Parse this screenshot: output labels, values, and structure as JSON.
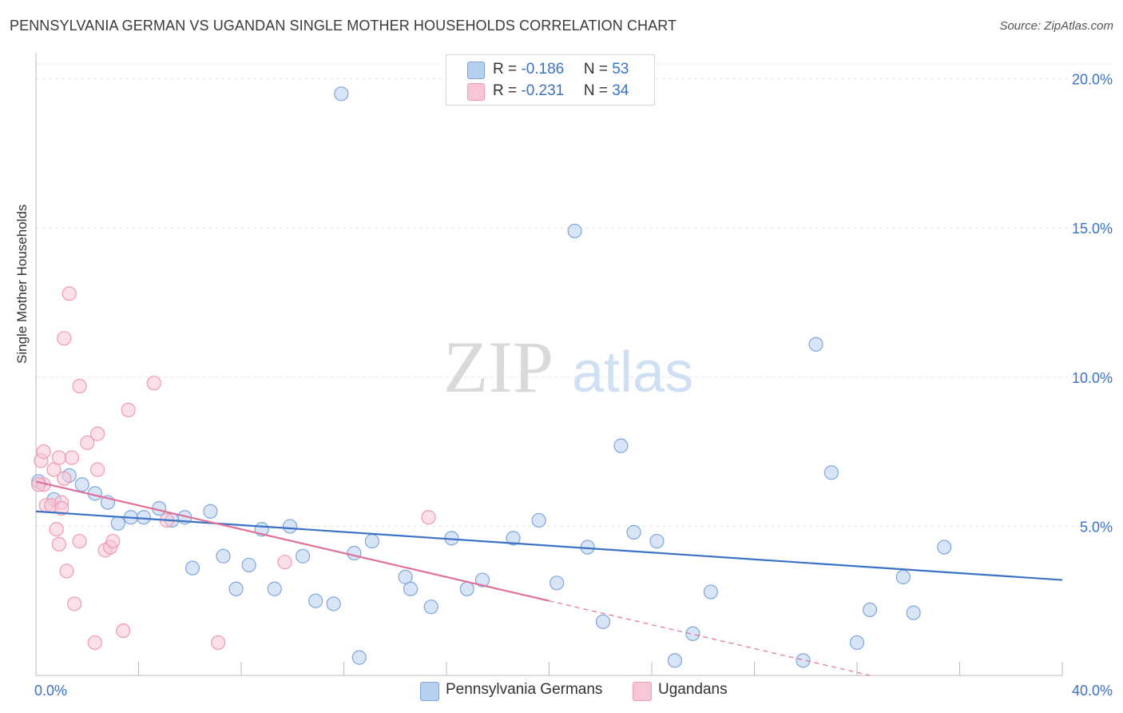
{
  "title": "PENNSYLVANIA GERMAN VS UGANDAN SINGLE MOTHER HOUSEHOLDS CORRELATION CHART",
  "source": "Source: ZipAtlas.com",
  "watermark": {
    "zip": "ZIP",
    "atlas": "atlas"
  },
  "colors": {
    "blue_fill": "#b8d0f0",
    "blue_stroke": "#7fa6dc",
    "blue_line": "#3a72c4",
    "pink_fill": "#f8c6d6",
    "pink_stroke": "#ee9ab4",
    "pink_line": "#e0709a",
    "axis_label": "#3a72c4",
    "grid": "#e3e3e3"
  },
  "legend": {
    "rows": [
      {
        "r_label": "R = ",
        "r_value": "-0.186",
        "n_label": "N = ",
        "n_value": "53"
      },
      {
        "r_label": "R = ",
        "r_value": "-0.231",
        "n_label": "N = ",
        "n_value": "34"
      }
    ]
  },
  "bottom_legend": [
    "Pennsylvania Germans",
    "Ugandans"
  ],
  "chart_data": {
    "type": "scatter",
    "ylabel": "Single Mother Households",
    "xlabel": "",
    "xlim": [
      0,
      40
    ],
    "ylim": [
      0,
      20.5
    ],
    "x_tick_labels": [
      "0.0%",
      "40.0%"
    ],
    "y_ticks": [
      5,
      10,
      15,
      20
    ],
    "y_tick_labels": [
      "5.0%",
      "10.0%",
      "15.0%",
      "20.0%"
    ],
    "grid": "horizontal dashed",
    "legend_placement": "top-center",
    "series": [
      {
        "name": "Pennsylvania Germans",
        "color": "#b8d0f0",
        "points": [
          [
            0.1,
            6.5
          ],
          [
            0.7,
            5.9
          ],
          [
            1.3,
            6.7
          ],
          [
            1.8,
            6.4
          ],
          [
            2.3,
            6.1
          ],
          [
            2.8,
            5.8
          ],
          [
            3.2,
            5.1
          ],
          [
            3.7,
            5.3
          ],
          [
            4.2,
            5.3
          ],
          [
            4.8,
            5.6
          ],
          [
            5.3,
            5.2
          ],
          [
            5.8,
            5.3
          ],
          [
            6.1,
            3.6
          ],
          [
            6.8,
            5.5
          ],
          [
            7.3,
            4.0
          ],
          [
            7.8,
            2.9
          ],
          [
            8.3,
            3.7
          ],
          [
            8.8,
            4.9
          ],
          [
            9.3,
            2.9
          ],
          [
            9.9,
            5.0
          ],
          [
            10.4,
            4.0
          ],
          [
            10.9,
            2.5
          ],
          [
            11.6,
            2.4
          ],
          [
            11.9,
            19.5
          ],
          [
            12.6,
            0.6
          ],
          [
            12.4,
            4.1
          ],
          [
            13.1,
            4.5
          ],
          [
            14.4,
            3.3
          ],
          [
            14.6,
            2.9
          ],
          [
            15.4,
            2.3
          ],
          [
            16.2,
            4.6
          ],
          [
            16.8,
            2.9
          ],
          [
            17.4,
            3.2
          ],
          [
            18.6,
            4.6
          ],
          [
            19.6,
            5.2
          ],
          [
            20.3,
            3.1
          ],
          [
            21.0,
            14.9
          ],
          [
            21.5,
            4.3
          ],
          [
            22.1,
            1.8
          ],
          [
            22.8,
            7.7
          ],
          [
            23.3,
            4.8
          ],
          [
            24.2,
            4.5
          ],
          [
            24.9,
            0.5
          ],
          [
            25.6,
            1.4
          ],
          [
            26.3,
            2.8
          ],
          [
            29.9,
            0.5
          ],
          [
            30.4,
            11.1
          ],
          [
            31.0,
            6.8
          ],
          [
            32.0,
            1.1
          ],
          [
            32.5,
            2.2
          ],
          [
            33.8,
            3.3
          ],
          [
            34.2,
            2.1
          ],
          [
            35.4,
            4.3
          ]
        ]
      },
      {
        "name": "Ugandans",
        "color": "#f8c6d6",
        "points": [
          [
            0.2,
            7.2
          ],
          [
            0.3,
            6.4
          ],
          [
            0.3,
            7.5
          ],
          [
            0.4,
            5.7
          ],
          [
            0.6,
            5.7
          ],
          [
            0.7,
            6.9
          ],
          [
            0.8,
            4.9
          ],
          [
            0.9,
            4.4
          ],
          [
            0.9,
            7.3
          ],
          [
            1.0,
            5.8
          ],
          [
            1.1,
            6.6
          ],
          [
            1.0,
            5.6
          ],
          [
            1.1,
            11.3
          ],
          [
            1.2,
            3.5
          ],
          [
            1.3,
            12.8
          ],
          [
            1.4,
            7.3
          ],
          [
            1.5,
            2.4
          ],
          [
            1.7,
            4.5
          ],
          [
            1.7,
            9.7
          ],
          [
            2.0,
            7.8
          ],
          [
            2.3,
            1.1
          ],
          [
            2.4,
            8.1
          ],
          [
            2.4,
            6.9
          ],
          [
            2.7,
            4.2
          ],
          [
            2.9,
            4.3
          ],
          [
            3.0,
            4.5
          ],
          [
            3.4,
            1.5
          ],
          [
            3.6,
            8.9
          ],
          [
            4.6,
            9.8
          ],
          [
            5.1,
            5.2
          ],
          [
            7.1,
            1.1
          ],
          [
            9.7,
            3.8
          ],
          [
            15.3,
            5.3
          ],
          [
            0.1,
            6.4
          ]
        ]
      }
    ],
    "trend_lines": [
      {
        "series": "Pennsylvania Germans",
        "x": [
          0,
          40
        ],
        "y": [
          5.5,
          3.2
        ]
      },
      {
        "series": "Ugandans",
        "x": [
          0,
          20
        ],
        "y": [
          6.5,
          2.5
        ],
        "dashed_extension_x": [
          20,
          32.5
        ],
        "dashed_extension_y": [
          2.5,
          0.0
        ]
      }
    ]
  }
}
